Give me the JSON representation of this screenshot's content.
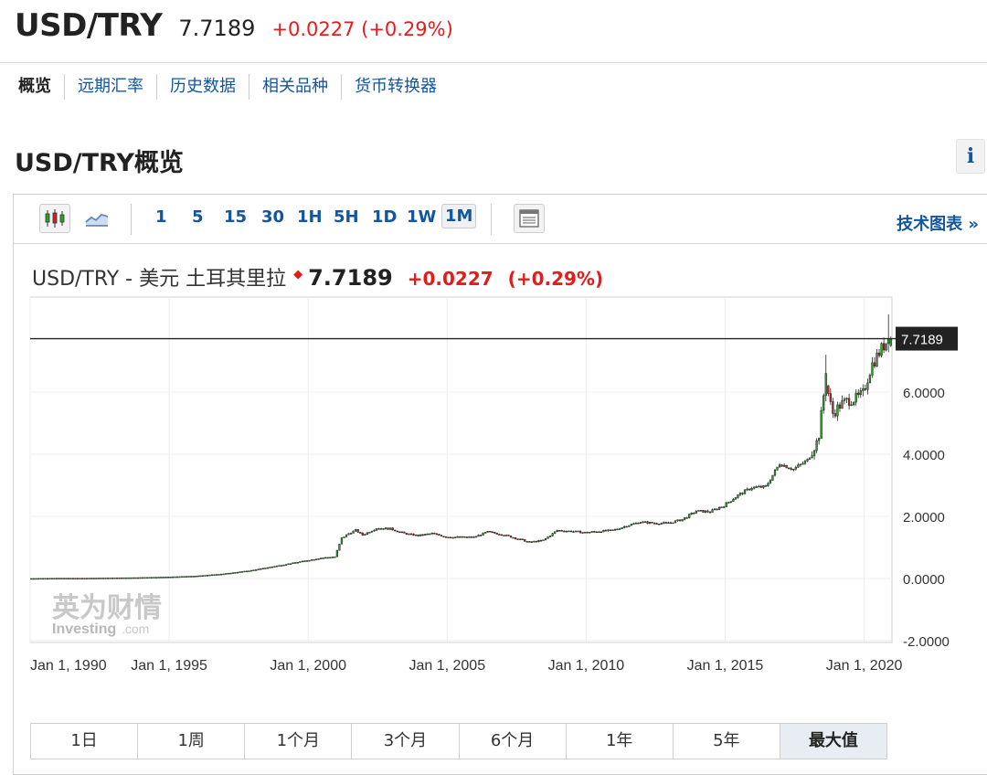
{
  "header": {
    "symbol": "USD/TRY",
    "price": "7.7189",
    "change": "+0.0227",
    "change_pct": "(+0.29%)"
  },
  "nav": {
    "items": [
      "概览",
      "远期汇率",
      "历史数据",
      "相关品种",
      "货币转换器"
    ]
  },
  "section_title": "USD/TRY概览",
  "info_icon": "i",
  "toolbar": {
    "intervals": [
      "1",
      "5",
      "15",
      "30",
      "1H",
      "5H",
      "1D",
      "1W",
      "1M"
    ],
    "selected_interval": "1M",
    "tech_chart_link": "技术图表 »"
  },
  "chart_header": {
    "name": "USD/TRY - 美元 土耳其里拉",
    "price": "7.7189",
    "change": "+0.0227",
    "change_pct": "(+0.29%)"
  },
  "watermark": {
    "cn": "英为财情",
    "en": "Investing",
    "suffix": ".com"
  },
  "ranges": {
    "items": [
      "1日",
      "1周",
      "1个月",
      "3个月",
      "6个月",
      "1年",
      "5年",
      "最大值"
    ],
    "selected": "最大值"
  },
  "chart_data": {
    "type": "candlestick",
    "title": "USD/TRY - 美元 土耳其里拉",
    "current_price_label": "7.7189",
    "current_price": 7.7189,
    "ylim": [
      -2.0,
      8.5
    ],
    "y_ticks": [
      -2.0,
      0.0,
      2.0,
      4.0,
      6.0
    ],
    "y_tick_labels": [
      "-2.0000",
      "0.0000",
      "2.0000",
      "4.0000",
      "6.0000"
    ],
    "x_ticks": [
      1990,
      1995,
      2000,
      2005,
      2010,
      2015,
      2020
    ],
    "x_tick_labels": [
      "Jan 1, 1990",
      "Jan 1, 1995",
      "Jan 1, 2000",
      "Jan 1, 2005",
      "Jan 1, 2010",
      "Jan 1, 2015",
      "Jan 1, 2020"
    ],
    "xlim": [
      1990,
      2021
    ],
    "up_color": "#2aa02a",
    "down_color": "#cc2222",
    "grid": true,
    "series": [
      {
        "points": [
          [
            1990.0,
            0.0
          ],
          [
            1991.0,
            0.01
          ],
          [
            1992.0,
            0.01
          ],
          [
            1993.0,
            0.02
          ],
          [
            1994.0,
            0.03
          ],
          [
            1995.0,
            0.05
          ],
          [
            1996.0,
            0.08
          ],
          [
            1997.0,
            0.15
          ],
          [
            1998.0,
            0.26
          ],
          [
            1999.0,
            0.42
          ],
          [
            2000.0,
            0.58
          ],
          [
            2000.5,
            0.66
          ],
          [
            2001.0,
            0.7
          ],
          [
            2001.25,
            1.3
          ],
          [
            2001.5,
            1.45
          ],
          [
            2001.75,
            1.55
          ],
          [
            2002.0,
            1.4
          ],
          [
            2002.5,
            1.62
          ],
          [
            2003.0,
            1.6
          ],
          [
            2003.5,
            1.45
          ],
          [
            2004.0,
            1.38
          ],
          [
            2004.5,
            1.45
          ],
          [
            2005.0,
            1.34
          ],
          [
            2005.5,
            1.33
          ],
          [
            2006.0,
            1.33
          ],
          [
            2006.5,
            1.5
          ],
          [
            2007.0,
            1.42
          ],
          [
            2007.5,
            1.3
          ],
          [
            2008.0,
            1.17
          ],
          [
            2008.5,
            1.23
          ],
          [
            2009.0,
            1.55
          ],
          [
            2009.5,
            1.52
          ],
          [
            2010.0,
            1.48
          ],
          [
            2010.5,
            1.52
          ],
          [
            2011.0,
            1.55
          ],
          [
            2011.5,
            1.7
          ],
          [
            2012.0,
            1.82
          ],
          [
            2012.5,
            1.78
          ],
          [
            2013.0,
            1.78
          ],
          [
            2013.5,
            1.9
          ],
          [
            2014.0,
            2.17
          ],
          [
            2014.5,
            2.15
          ],
          [
            2015.0,
            2.35
          ],
          [
            2015.5,
            2.68
          ],
          [
            2016.0,
            2.93
          ],
          [
            2016.5,
            2.95
          ],
          [
            2017.0,
            3.7
          ],
          [
            2017.5,
            3.52
          ],
          [
            2018.0,
            3.8
          ],
          [
            2018.4,
            4.5
          ],
          [
            2018.65,
            6.4
          ],
          [
            2018.9,
            5.3
          ],
          [
            2019.2,
            5.6
          ],
          [
            2019.5,
            5.75
          ],
          [
            2019.8,
            5.8
          ],
          [
            2020.0,
            5.95
          ],
          [
            2020.3,
            6.85
          ],
          [
            2020.6,
            7.3
          ],
          [
            2020.9,
            7.7
          ]
        ]
      }
    ]
  }
}
